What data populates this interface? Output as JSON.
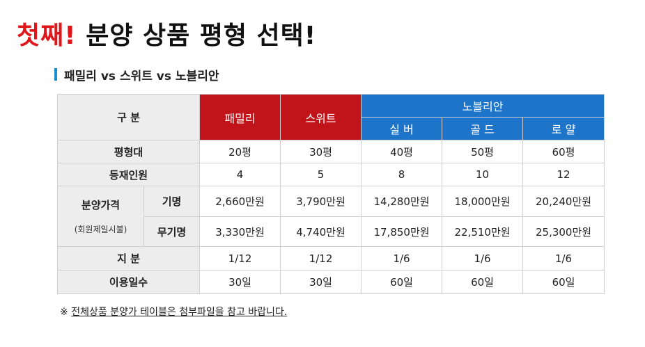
{
  "headline": {
    "red": "첫째!",
    "black": "분양 상품 평형 선택!"
  },
  "subtitle": "패밀리 vs 스위트 vs 노블리안",
  "table": {
    "category_label": "구 분",
    "family": "패밀리",
    "suite": "스위트",
    "noblian": "노블리안",
    "silver": "실 버",
    "gold": "골 드",
    "royal": "로 얄",
    "rows": {
      "size": {
        "label": "평형대",
        "values": [
          "20평",
          "30평",
          "40평",
          "50평",
          "60평"
        ]
      },
      "members": {
        "label": "등재인원",
        "values": [
          "4",
          "5",
          "8",
          "10",
          "12"
        ]
      },
      "price_label": "분양가격",
      "price_note": "(회원제일시불)",
      "named": {
        "label": "기명",
        "values": [
          "2,660만원",
          "3,790만원",
          "14,280만원",
          "18,000만원",
          "20,240만원"
        ]
      },
      "unnamed": {
        "label": "무기명",
        "values": [
          "3,330만원",
          "4,740만원",
          "17,850만원",
          "22,510만원",
          "25,300만원"
        ]
      },
      "share": {
        "label": "지 분",
        "values": [
          "1/12",
          "1/12",
          "1/6",
          "1/6",
          "1/6"
        ]
      },
      "days": {
        "label": "이용일수",
        "values": [
          "30일",
          "30일",
          "60일",
          "60일",
          "60일"
        ]
      }
    }
  },
  "note": {
    "mark": "※ ",
    "text": "전체상품 분양가 테이블은 첨부파일을 참고 바랍니다."
  },
  "colors": {
    "red": "#c0141a",
    "blue": "#1d74c9",
    "accent_bar": "#1a8fd6",
    "headline_red": "#e0161b"
  }
}
